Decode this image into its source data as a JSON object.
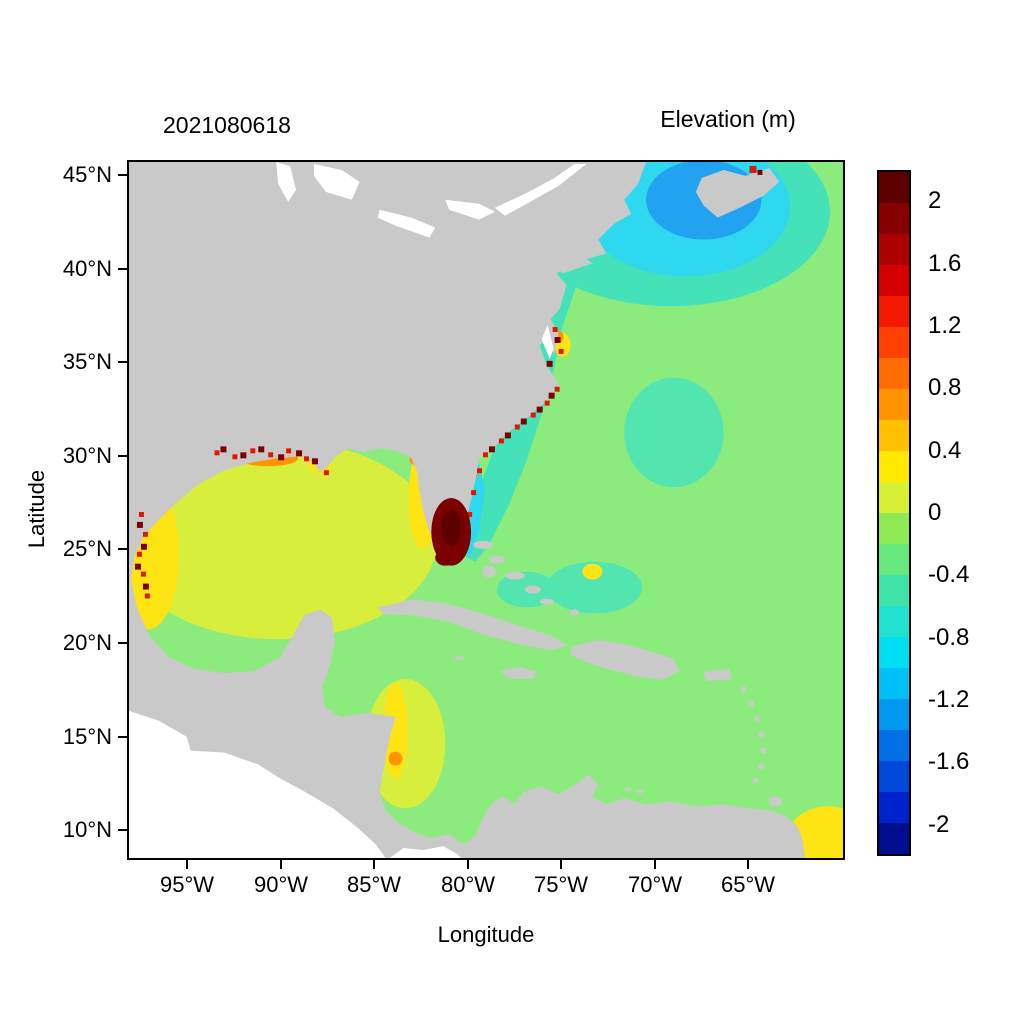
{
  "figure": {
    "date_label": "2021080618",
    "colorbar_title": "Elevation (m)"
  },
  "axes": {
    "x": {
      "label": "Longitude",
      "ticks": [
        "95°W",
        "90°W",
        "85°W",
        "80°W",
        "75°W",
        "70°W",
        "65°W"
      ]
    },
    "y": {
      "label": "Latitude",
      "ticks": [
        "45°N",
        "40°N",
        "35°N",
        "30°N",
        "25°N",
        "20°N",
        "15°N",
        "10°N"
      ]
    }
  },
  "colorbar": {
    "labels": [
      "2",
      "1.6",
      "1.2",
      "0.8",
      "0.4",
      "0",
      "-0.4",
      "-0.8",
      "-1.2",
      "-1.6",
      "-2"
    ],
    "min": -2.2,
    "max": 2.2,
    "step": 0.2,
    "colors_top_to_bottom": [
      "#5c0000",
      "#870000",
      "#ad0000",
      "#d40000",
      "#f51800",
      "#ff4000",
      "#ff6c00",
      "#ff9400",
      "#ffc000",
      "#ffe900",
      "#d9ef35",
      "#8fe952",
      "#67e87d",
      "#3fe3a8",
      "#21e2cf",
      "#00dff2",
      "#00c0f8",
      "#0098f0",
      "#0070e6",
      "#0048da",
      "#0022cc",
      "#000d8f"
    ]
  },
  "chart_data": {
    "type": "heatmap",
    "title": "2021080618",
    "variable": "Elevation",
    "units": "m",
    "xlabel": "Longitude",
    "ylabel": "Latitude",
    "x_ticks": [
      "95°W",
      "90°W",
      "85°W",
      "80°W",
      "75°W",
      "70°W",
      "65°W"
    ],
    "y_ticks": [
      "45°N",
      "40°N",
      "35°N",
      "30°N",
      "25°N",
      "20°N",
      "15°N",
      "10°N"
    ],
    "colorbar_range_m": [
      -2.2,
      2.2
    ],
    "colorbar_labeled_values": [
      2,
      1.6,
      1.2,
      0.8,
      0.4,
      0,
      -0.4,
      -0.8,
      -1.2,
      -1.6,
      -2
    ],
    "legend_position": "right",
    "grid": false,
    "regions": [
      {
        "name": "Open Atlantic and Caribbean",
        "approx_value_m": "-0.2 to 0 (light green)"
      },
      {
        "name": "Gulf of Mexico interior",
        "approx_value_m": "0 to 0.2 (yellow-green)"
      },
      {
        "name": "Western Gulf nearshore (Texas/Mexico shelf)",
        "approx_value_m": "0.2 to 0.4 (yellow)"
      },
      {
        "name": "West Florida shelf",
        "approx_value_m": "0.2 to 0.4 (yellow)"
      },
      {
        "name": "US East Coast shelf / Gulf Stream band",
        "approx_value_m": "-0.4 to -0.8 (teal/cyan)"
      },
      {
        "name": "Mid-Atlantic offshore patch near 70W 31N",
        "approx_value_m": "-0.3 to -0.5 (aquamarine)"
      },
      {
        "name": "Gulf of Maine / Scotian Shelf",
        "approx_value_m": "-0.8 to -1.4 (cyan/blue)"
      },
      {
        "name": "Southeast Florida coast (storm surge spot)",
        "approx_value_m": "greater than 2 (dark red)"
      },
      {
        "name": "Northern Gulf coast and Carolinas coastal cells",
        "approx_value_m": "1.2 to greater than 2 (red/dark red specks)"
      },
      {
        "name": "Belize / Honduras nearshore",
        "approx_value_m": "0.2 to 0.4 (yellow)"
      },
      {
        "name": "Bottom-right corner (tropical Atlantic)",
        "approx_value_m": "0.2 to 0.4 (yellow)"
      },
      {
        "name": "Land",
        "approx_value_m": "masked (gray)"
      }
    ],
    "palette": {
      "land": "#c9c9c9",
      "no_data_white": "#ffffff",
      "ocean_green": "#8ceb7d",
      "yellow_green": "#d8ee3c",
      "yellow": "#ffe414",
      "orange": "#ff9400",
      "red": "#e01800",
      "darkred": "#7d0000",
      "deepred": "#5c0000",
      "teal": "#45e2ba",
      "teal_soft": "#52e5b0",
      "cyan": "#2ed8ee",
      "blue": "#22a3f2"
    }
  }
}
